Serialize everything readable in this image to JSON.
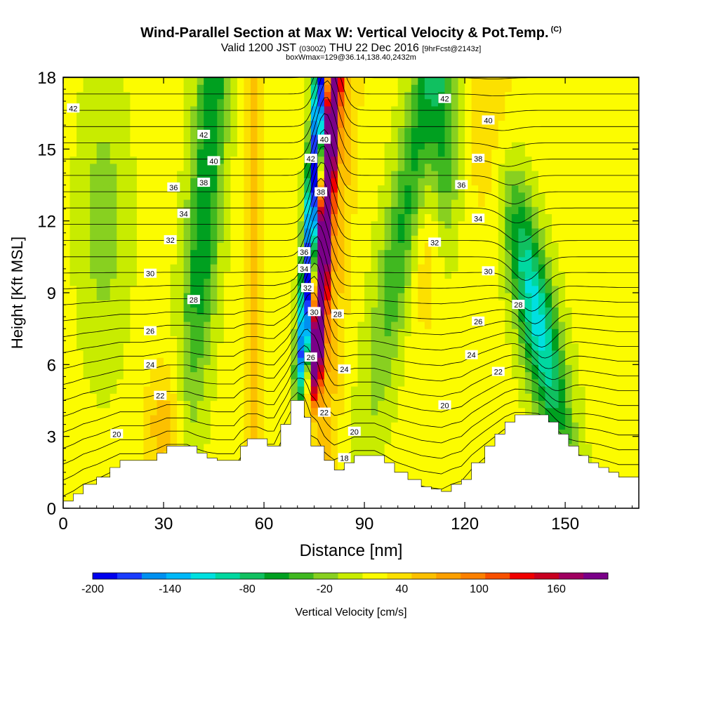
{
  "title": {
    "main": "Wind-Parallel Section at Max W: Vertical Velocity & Pot.Temp.",
    "corner": "(C)",
    "valid_prefix": "Valid 1200 JST",
    "valid_zulu": "(0300Z)",
    "valid_date": "THU 22 Dec 2016",
    "fcst": "[9hrFcst@2143z]",
    "box_info": "boxWmax=129@36.14,138.40,2432m"
  },
  "chart_data": {
    "type": "heatmap",
    "xlabel": "Distance [nm]",
    "ylabel": "Height [Kft MSL]",
    "xlim": [
      0,
      172
    ],
    "ylim": [
      0,
      18
    ],
    "x_ticks": [
      "0",
      "30",
      "60",
      "90",
      "120",
      "150"
    ],
    "x_tick_values": [
      0,
      30,
      60,
      90,
      120,
      150
    ],
    "y_ticks": [
      "0",
      "3",
      "6",
      "9",
      "12",
      "15",
      "18"
    ],
    "y_tick_values": [
      0,
      3,
      6,
      9,
      12,
      15,
      18
    ],
    "terrain_kft": [
      [
        0,
        0.3
      ],
      [
        3,
        0.6
      ],
      [
        6,
        1.0
      ],
      [
        10,
        1.3
      ],
      [
        14,
        1.7
      ],
      [
        17,
        2.0
      ],
      [
        24,
        2.0
      ],
      [
        28,
        2.3
      ],
      [
        31,
        2.6
      ],
      [
        34,
        2.6
      ],
      [
        37,
        2.6
      ],
      [
        40,
        2.3
      ],
      [
        43,
        2.1
      ],
      [
        46,
        2.0
      ],
      [
        49,
        2.0
      ],
      [
        51,
        2.0
      ],
      [
        53,
        2.6
      ],
      [
        55,
        2.9
      ],
      [
        58,
        2.9
      ],
      [
        61,
        2.6
      ],
      [
        63,
        2.6
      ],
      [
        65,
        3.5
      ],
      [
        68,
        4.5
      ],
      [
        70,
        4.5
      ],
      [
        72,
        3.8
      ],
      [
        74,
        2.6
      ],
      [
        76,
        2.6
      ],
      [
        78,
        2.0
      ],
      [
        81,
        1.6
      ],
      [
        84,
        1.9
      ],
      [
        87,
        2.2
      ],
      [
        90,
        2.2
      ],
      [
        93,
        2.2
      ],
      [
        96,
        1.9
      ],
      [
        99,
        1.5
      ],
      [
        103,
        1.2
      ],
      [
        107,
        0.9
      ],
      [
        110,
        0.8
      ],
      [
        113,
        0.7
      ],
      [
        116,
        1.0
      ],
      [
        119,
        1.2
      ],
      [
        122,
        1.9
      ],
      [
        126,
        2.6
      ],
      [
        129,
        3.1
      ],
      [
        132,
        3.6
      ],
      [
        135,
        3.9
      ],
      [
        138,
        3.9
      ],
      [
        142,
        3.9
      ],
      [
        145,
        3.6
      ],
      [
        148,
        3.1
      ],
      [
        151,
        2.6
      ],
      [
        154,
        2.2
      ],
      [
        157,
        1.9
      ],
      [
        160,
        1.7
      ],
      [
        163,
        1.5
      ],
      [
        166,
        1.3
      ],
      [
        169,
        1.3
      ],
      [
        172,
        1.3
      ]
    ],
    "theta_contours": [
      {
        "label": "18",
        "x": 84,
        "y": 2.1
      },
      {
        "label": "20",
        "x": 16,
        "y": 3.1
      },
      {
        "label": "20",
        "x": 87,
        "y": 3.2
      },
      {
        "label": "20",
        "x": 114,
        "y": 4.3
      },
      {
        "label": "22",
        "x": 29,
        "y": 4.7
      },
      {
        "label": "22",
        "x": 78,
        "y": 4.0
      },
      {
        "label": "22",
        "x": 130,
        "y": 5.7
      },
      {
        "label": "24",
        "x": 26,
        "y": 6.0
      },
      {
        "label": "24",
        "x": 84,
        "y": 5.8
      },
      {
        "label": "24",
        "x": 122,
        "y": 6.4
      },
      {
        "label": "26",
        "x": 26,
        "y": 7.4
      },
      {
        "label": "26",
        "x": 74,
        "y": 6.3
      },
      {
        "label": "26",
        "x": 124,
        "y": 7.8
      },
      {
        "label": "28",
        "x": 39,
        "y": 8.7
      },
      {
        "label": "28",
        "x": 82,
        "y": 8.1
      },
      {
        "label": "28",
        "x": 136,
        "y": 8.5
      },
      {
        "label": "30",
        "x": 26,
        "y": 9.8
      },
      {
        "label": "30",
        "x": 75,
        "y": 8.2
      },
      {
        "label": "30",
        "x": 127,
        "y": 9.9
      },
      {
        "label": "32",
        "x": 32,
        "y": 11.2
      },
      {
        "label": "32",
        "x": 73,
        "y": 9.2
      },
      {
        "label": "32",
        "x": 111,
        "y": 11.1
      },
      {
        "label": "34",
        "x": 36,
        "y": 12.3
      },
      {
        "label": "34",
        "x": 72,
        "y": 10.0
      },
      {
        "label": "34",
        "x": 124,
        "y": 12.1
      },
      {
        "label": "36",
        "x": 33,
        "y": 13.4
      },
      {
        "label": "36",
        "x": 72,
        "y": 10.7
      },
      {
        "label": "36",
        "x": 119,
        "y": 13.5
      },
      {
        "label": "38",
        "x": 42,
        "y": 13.6
      },
      {
        "label": "38",
        "x": 77,
        "y": 13.2
      },
      {
        "label": "38",
        "x": 124,
        "y": 14.6
      },
      {
        "label": "40",
        "x": 45,
        "y": 14.5
      },
      {
        "label": "40",
        "x": 78,
        "y": 15.4
      },
      {
        "label": "40",
        "x": 127,
        "y": 16.2
      },
      {
        "label": "42",
        "x": 42,
        "y": 15.6
      },
      {
        "label": "42",
        "x": 74,
        "y": 14.6
      },
      {
        "label": "42",
        "x": 3,
        "y": 16.7
      },
      {
        "label": "42",
        "x": 114,
        "y": 17.1
      }
    ],
    "colorbar": {
      "title": "Vertical Velocity [cm/s]",
      "min": -200,
      "max": 200,
      "step": 20,
      "tick_labels": [
        "-200",
        "-140",
        "-80",
        "-20",
        "40",
        "100",
        "160"
      ],
      "tick_values": [
        -200,
        -140,
        -80,
        -20,
        40,
        100,
        160
      ],
      "colors": [
        "#0000ee",
        "#1a3cff",
        "#0090f0",
        "#00b8f8",
        "#00e0e0",
        "#00d8a0",
        "#10c060",
        "#00a020",
        "#40b820",
        "#88d020",
        "#c8ec00",
        "#fcfc00",
        "#fce000",
        "#fcc000",
        "#fca000",
        "#fc8000",
        "#f85000",
        "#f00000",
        "#c80020",
        "#a00060",
        "#7a0088"
      ]
    }
  }
}
